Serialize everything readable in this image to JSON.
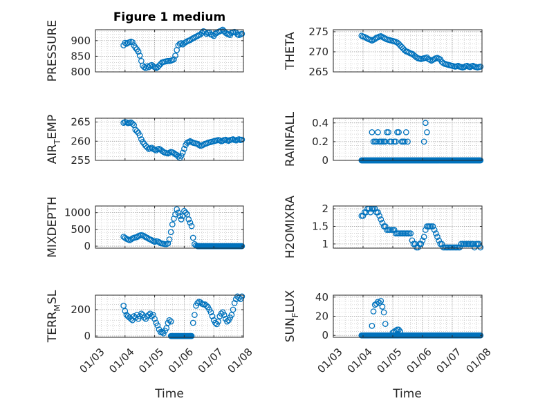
{
  "figure": {
    "title": "Figure 1 medium",
    "xlabel": "Time",
    "colors": {
      "marker": "#0072bd",
      "axis": "#262626",
      "grid": "#b8b8b8"
    }
  },
  "chart_data": [
    {
      "type": "scatter",
      "title": "Figure 1 medium",
      "ylabel": "PRESSURE",
      "ylim": [
        800,
        935
      ],
      "yticks": [
        800,
        850,
        900
      ],
      "xticks": [
        "01/03",
        "01/04",
        "01/05",
        "01/06",
        "01/07",
        "01/08"
      ],
      "xlim": [
        0,
        5
      ],
      "grid": true,
      "x": [
        0.95,
        1.0,
        1.05,
        1.1,
        1.15,
        1.2,
        1.25,
        1.3,
        1.35,
        1.4,
        1.45,
        1.5,
        1.55,
        1.6,
        1.65,
        1.7,
        1.75,
        1.8,
        1.85,
        1.9,
        1.95,
        2.0,
        2.05,
        2.1,
        2.15,
        2.2,
        2.25,
        2.3,
        2.35,
        2.4,
        2.45,
        2.5,
        2.55,
        2.6,
        2.65,
        2.7,
        2.75,
        2.8,
        2.85,
        2.9,
        2.95,
        3.0,
        3.05,
        3.1,
        3.15,
        3.2,
        3.25,
        3.3,
        3.35,
        3.4,
        3.45,
        3.5,
        3.55,
        3.6,
        3.65,
        3.7,
        3.75,
        3.8,
        3.85,
        3.9,
        3.95,
        4.0,
        4.05,
        4.1,
        4.15,
        4.2,
        4.25,
        4.3,
        4.35,
        4.4,
        4.45,
        4.5,
        4.55,
        4.6,
        4.65,
        4.7,
        4.75,
        4.8,
        4.85,
        4.9,
        4.95
      ],
      "y": [
        885,
        893,
        890,
        893,
        895,
        897,
        895,
        885,
        878,
        872,
        865,
        852,
        835,
        820,
        815,
        812,
        818,
        815,
        820,
        822,
        818,
        815,
        812,
        815,
        820,
        825,
        830,
        832,
        833,
        834,
        835,
        835,
        836,
        838,
        840,
        852,
        870,
        885,
        890,
        892,
        888,
        892,
        895,
        898,
        900,
        902,
        905,
        908,
        910,
        913,
        915,
        918,
        920,
        925,
        930,
        928,
        922,
        925,
        926,
        920,
        918,
        915,
        922,
        925,
        928,
        930,
        932,
        935,
        930,
        925,
        922,
        920,
        918,
        925,
        927,
        928,
        926,
        920,
        918,
        920,
        922
      ],
      "series_note": ""
    },
    {
      "type": "scatter",
      "ylabel": "THETA",
      "ylim": [
        265,
        275.5
      ],
      "yticks": [
        265,
        270,
        275
      ],
      "xticks": [
        "01/03",
        "01/04",
        "01/05",
        "01/06",
        "01/07",
        "01/08"
      ],
      "xlim": [
        0,
        5
      ],
      "grid": true,
      "x": [
        0.95,
        1.0,
        1.05,
        1.1,
        1.15,
        1.2,
        1.25,
        1.3,
        1.35,
        1.4,
        1.45,
        1.5,
        1.55,
        1.6,
        1.65,
        1.7,
        1.75,
        1.8,
        1.85,
        1.9,
        1.95,
        2.0,
        2.05,
        2.1,
        2.15,
        2.2,
        2.25,
        2.3,
        2.35,
        2.4,
        2.45,
        2.5,
        2.55,
        2.6,
        2.65,
        2.7,
        2.75,
        2.8,
        2.85,
        2.9,
        2.95,
        3.0,
        3.05,
        3.1,
        3.15,
        3.2,
        3.25,
        3.3,
        3.35,
        3.4,
        3.45,
        3.5,
        3.55,
        3.6,
        3.65,
        3.7,
        3.75,
        3.8,
        3.85,
        3.9,
        3.95,
        4.0,
        4.05,
        4.1,
        4.15,
        4.2,
        4.25,
        4.3,
        4.35,
        4.4,
        4.45,
        4.5,
        4.55,
        4.6,
        4.65,
        4.7,
        4.75,
        4.8,
        4.85,
        4.9,
        4.95
      ],
      "y": [
        274,
        273.8,
        273.7,
        273.5,
        273.3,
        273.1,
        273,
        272.8,
        273,
        273.2,
        273.5,
        273.6,
        273.8,
        273.9,
        273.7,
        273.5,
        273.3,
        273.1,
        273,
        272.9,
        272.8,
        272.7,
        272.6,
        272.5,
        272.3,
        272,
        271.6,
        271.2,
        270.8,
        270.4,
        270.1,
        270,
        269.8,
        269.6,
        269.5,
        269.2,
        268.9,
        268.6,
        268.4,
        268.3,
        268.2,
        268.3,
        268.4,
        268.5,
        268.6,
        268.2,
        268,
        267.8,
        268,
        268.2,
        268.4,
        268.5,
        268.3,
        268.1,
        267.5,
        267.2,
        267,
        266.9,
        266.8,
        266.7,
        266.6,
        266.5,
        266.4,
        266.3,
        266.4,
        266.5,
        266.3,
        266.2,
        266.1,
        266.2,
        266.4,
        266.5,
        266.3,
        266.2,
        266.4,
        266.5,
        266.3,
        266.2,
        266.1,
        266.2,
        266.3
      ],
      "series_note": ""
    },
    {
      "type": "scatter",
      "ylabel": "AIR_TEMP",
      "ylim": [
        255,
        266
      ],
      "yticks": [
        255,
        260,
        265
      ],
      "xticks": [
        "01/03",
        "01/04",
        "01/05",
        "01/06",
        "01/07",
        "01/08"
      ],
      "xlim": [
        0,
        5
      ],
      "grid": true,
      "x": [
        0.95,
        1.0,
        1.05,
        1.1,
        1.15,
        1.2,
        1.25,
        1.3,
        1.35,
        1.4,
        1.45,
        1.5,
        1.55,
        1.6,
        1.65,
        1.7,
        1.75,
        1.8,
        1.85,
        1.9,
        1.95,
        2.0,
        2.05,
        2.1,
        2.15,
        2.2,
        2.25,
        2.3,
        2.35,
        2.4,
        2.45,
        2.5,
        2.55,
        2.6,
        2.65,
        2.7,
        2.75,
        2.8,
        2.85,
        2.9,
        2.95,
        3.0,
        3.05,
        3.1,
        3.15,
        3.2,
        3.25,
        3.3,
        3.35,
        3.4,
        3.45,
        3.5,
        3.55,
        3.6,
        3.65,
        3.7,
        3.75,
        3.8,
        3.85,
        3.9,
        3.95,
        4.0,
        4.05,
        4.1,
        4.15,
        4.2,
        4.25,
        4.3,
        4.35,
        4.4,
        4.45,
        4.5,
        4.55,
        4.6,
        4.65,
        4.7,
        4.75,
        4.8,
        4.85,
        4.9,
        4.95
      ],
      "y": [
        264.8,
        265,
        264.9,
        264.7,
        264.8,
        264.9,
        264.6,
        264.2,
        263,
        262.6,
        262.2,
        261.5,
        260.5,
        259.8,
        259.3,
        258.8,
        258.4,
        258,
        258.1,
        258.3,
        258,
        257.8,
        257.6,
        257.9,
        258,
        257.8,
        257.5,
        257.2,
        257,
        256.9,
        256.8,
        257,
        257.2,
        257.1,
        256.9,
        256.6,
        256.4,
        256,
        255.6,
        256.2,
        257,
        258,
        259,
        259.6,
        259.8,
        260,
        259.8,
        259.6,
        259.5,
        259.4,
        259.3,
        259,
        258.8,
        258.9,
        259.1,
        259.3,
        259.4,
        259.6,
        259.7,
        259.8,
        259.9,
        260,
        260.1,
        260.2,
        260.3,
        260.2,
        260,
        260.1,
        260.3,
        260.4,
        260.2,
        260.1,
        260.3,
        260.4,
        260.5,
        260.3,
        260.2,
        260.4,
        260.5,
        260.3,
        260.4
      ],
      "series_note": ""
    },
    {
      "type": "scatter",
      "ylabel": "RAINFALL",
      "ylim": [
        0,
        0.45
      ],
      "yticks": [
        0,
        0.2,
        0.4
      ],
      "xticks": [
        "01/03",
        "01/04",
        "01/05",
        "01/06",
        "01/07",
        "01/08"
      ],
      "xlim": [
        0,
        5
      ],
      "grid": true,
      "x": [
        1.3,
        1.35,
        1.4,
        1.45,
        1.5,
        1.55,
        1.6,
        1.65,
        1.7,
        1.75,
        1.8,
        1.85,
        1.9,
        1.95,
        2.05,
        2.1,
        2.15,
        2.2,
        2.3,
        2.35,
        2.4,
        2.45,
        2.5,
        3.05,
        3.1,
        3.15
      ],
      "y": [
        0.3,
        0.2,
        0.2,
        0.2,
        0.3,
        0.2,
        0.2,
        0.2,
        0.2,
        0.2,
        0.3,
        0.3,
        0.2,
        0.2,
        0.2,
        0.2,
        0.3,
        0.3,
        0.2,
        0.2,
        0.2,
        0.3,
        0.2,
        0.2,
        0.4,
        0.3
      ],
      "baseline": {
        "value": 0,
        "from": 0.95,
        "to": 4.95
      },
      "series_note": ""
    },
    {
      "type": "scatter",
      "ylabel": "MIXDEPTH",
      "ylim": [
        -60,
        1200
      ],
      "yticks": [
        0,
        500,
        1000
      ],
      "xticks": [
        "01/03",
        "01/04",
        "01/05",
        "01/06",
        "01/07",
        "01/08"
      ],
      "xlim": [
        0,
        5
      ],
      "grid": true,
      "x": [
        0.95,
        1.0,
        1.05,
        1.1,
        1.15,
        1.2,
        1.25,
        1.3,
        1.35,
        1.4,
        1.45,
        1.5,
        1.55,
        1.6,
        1.65,
        1.7,
        1.75,
        1.8,
        1.85,
        1.9,
        1.95,
        2.0,
        2.05,
        2.1,
        2.15,
        2.2,
        2.25,
        2.3,
        2.35,
        2.4,
        2.45,
        2.5,
        2.55,
        2.6,
        2.65,
        2.7,
        2.75,
        2.8,
        2.85,
        2.9,
        2.95,
        3.0,
        3.05,
        3.1,
        3.15,
        3.2,
        3.25,
        3.3,
        3.35,
        3.4,
        3.45,
        3.5,
        3.55,
        3.6,
        3.65,
        3.7,
        3.75,
        3.8,
        3.85,
        3.9,
        3.95
      ],
      "y": [
        280,
        250,
        220,
        200,
        180,
        200,
        230,
        250,
        260,
        270,
        300,
        320,
        330,
        320,
        300,
        270,
        250,
        220,
        200,
        180,
        150,
        130,
        150,
        140,
        120,
        90,
        80,
        70,
        60,
        60,
        80,
        200,
        420,
        650,
        820,
        950,
        1100,
        1000,
        900,
        800,
        900,
        1050,
        1000,
        950,
        800,
        700,
        600,
        250,
        60,
        20,
        10,
        0,
        0,
        0,
        0,
        0,
        0,
        0,
        0,
        0,
        0
      ],
      "baseline": {
        "value": 0,
        "from": 3.45,
        "to": 4.95
      },
      "series_note": ""
    },
    {
      "type": "scatter",
      "ylabel": "H2OMIXRA",
      "ylim": [
        0.88,
        2.08
      ],
      "yticks": [
        1,
        1.5,
        2
      ],
      "xticks": [
        "01/03",
        "01/04",
        "01/05",
        "01/06",
        "01/07",
        "01/08"
      ],
      "xlim": [
        0,
        5
      ],
      "grid": true,
      "x": [
        0.95,
        1.0,
        1.05,
        1.1,
        1.15,
        1.2,
        1.25,
        1.3,
        1.35,
        1.4,
        1.45,
        1.5,
        1.55,
        1.6,
        1.65,
        1.7,
        1.75,
        1.8,
        1.85,
        1.9,
        1.95,
        2.0,
        2.05,
        2.1,
        2.15,
        2.2,
        2.25,
        2.3,
        2.35,
        2.4,
        2.45,
        2.5,
        2.55,
        2.6,
        2.65,
        2.7,
        2.75,
        2.8,
        2.85,
        2.9,
        2.95,
        3.0,
        3.05,
        3.1,
        3.15,
        3.2,
        3.25,
        3.3,
        3.35,
        3.4,
        3.45,
        3.5,
        3.55,
        3.6,
        3.65,
        3.7,
        3.75,
        3.8,
        3.85,
        3.9,
        3.95,
        4.0,
        4.05,
        4.1,
        4.15,
        4.2,
        4.25,
        4.3,
        4.35,
        4.4,
        4.45,
        4.5,
        4.55,
        4.6,
        4.65,
        4.7,
        4.75,
        4.8,
        4.85,
        4.9,
        4.95
      ],
      "y": [
        1.8,
        1.8,
        1.9,
        1.9,
        2,
        2,
        1.9,
        2,
        2,
        2,
        1.9,
        1.9,
        1.8,
        1.7,
        1.6,
        1.5,
        1.5,
        1.4,
        1.4,
        1.4,
        1.4,
        1.4,
        1.4,
        1.3,
        1.3,
        1.3,
        1.3,
        1.3,
        1.3,
        1.3,
        1.3,
        1.3,
        1.3,
        1.3,
        1.1,
        1,
        1,
        0.9,
        0.9,
        1,
        1,
        1.1,
        1.2,
        1.4,
        1.5,
        1.5,
        1.5,
        1.5,
        1.5,
        1.4,
        1.3,
        1.2,
        1.1,
        1,
        1,
        0.9,
        0.9,
        0.9,
        0.9,
        0.9,
        0.9,
        0.9,
        0.9,
        0.9,
        0.9,
        0.9,
        0.9,
        1,
        1,
        1,
        1,
        1,
        1,
        1,
        1,
        1,
        0.9,
        1,
        1,
        1,
        0.9
      ],
      "series_note": ""
    },
    {
      "type": "scatter",
      "ylabel": "TERR_MSL",
      "ylim": [
        -10,
        310
      ],
      "yticks": [
        0,
        200
      ],
      "xticks": [
        "01/03",
        "01/04",
        "01/05",
        "01/06",
        "01/07",
        "01/08"
      ],
      "xlim": [
        0,
        5
      ],
      "grid": true,
      "x": [
        0.95,
        1.0,
        1.05,
        1.1,
        1.15,
        1.2,
        1.25,
        1.3,
        1.35,
        1.4,
        1.45,
        1.5,
        1.55,
        1.6,
        1.65,
        1.7,
        1.75,
        1.8,
        1.85,
        1.9,
        1.95,
        2.0,
        2.05,
        2.1,
        2.15,
        2.2,
        2.25,
        2.3,
        2.35,
        2.4,
        2.45,
        2.5,
        2.55,
        3.3,
        3.35,
        3.4,
        3.45,
        3.5,
        3.55,
        3.6,
        3.65,
        3.7,
        3.75,
        3.8,
        3.85,
        3.9,
        3.95,
        4.0,
        4.05,
        4.1,
        4.15,
        4.2,
        4.25,
        4.3,
        4.35,
        4.4,
        4.45,
        4.5,
        4.55,
        4.6,
        4.65,
        4.7,
        4.75,
        4.8,
        4.85,
        4.9,
        4.95
      ],
      "y": [
        230,
        190,
        160,
        150,
        140,
        130,
        120,
        150,
        140,
        160,
        130,
        150,
        170,
        160,
        140,
        130,
        150,
        160,
        170,
        150,
        160,
        130,
        100,
        80,
        50,
        30,
        30,
        20,
        40,
        60,
        100,
        120,
        110,
        100,
        160,
        230,
        250,
        260,
        255,
        245,
        240,
        240,
        230,
        220,
        200,
        180,
        150,
        120,
        100,
        90,
        110,
        150,
        170,
        180,
        160,
        130,
        110,
        120,
        140,
        160,
        200,
        250,
        280,
        300,
        290,
        280,
        300
      ],
      "baseline": {
        "value": 0,
        "from": 2.55,
        "to": 3.25
      },
      "series_note": ""
    },
    {
      "type": "scatter",
      "ylabel": "SUN_FLUX",
      "ylim": [
        -2,
        42
      ],
      "yticks": [
        0,
        20,
        40
      ],
      "xticks": [
        "01/03",
        "01/04",
        "01/05",
        "01/06",
        "01/07",
        "01/08"
      ],
      "xlim": [
        0,
        5
      ],
      "grid": true,
      "x": [
        1.3,
        1.35,
        1.4,
        1.45,
        1.5,
        1.55,
        1.6,
        1.65,
        1.7,
        1.75,
        2.0,
        2.05,
        2.1,
        2.15,
        2.2,
        2.25
      ],
      "y": [
        10,
        25,
        32,
        33,
        35,
        34,
        36,
        30,
        24,
        12,
        3,
        4,
        5,
        6,
        6,
        4
      ],
      "baseline": {
        "value": 0,
        "from": 0.95,
        "to": 4.95
      },
      "series_note": ""
    }
  ]
}
